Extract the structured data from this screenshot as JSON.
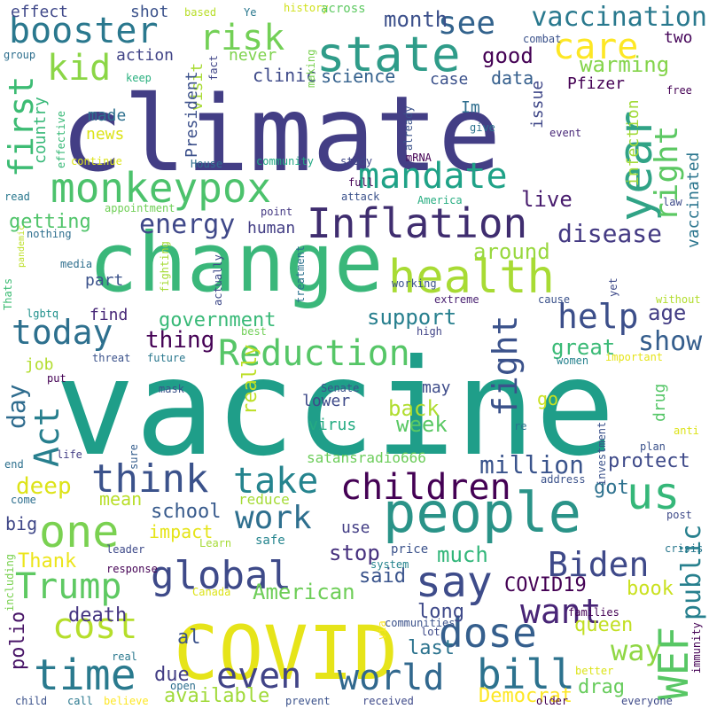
{
  "cloud": {
    "words": [
      {
        "text": "vaccine",
        "color": "#1f9e89"
      },
      {
        "text": "climate",
        "color": "#433e85"
      },
      {
        "text": "change",
        "color": "#3ab77a"
      },
      {
        "text": "people",
        "color": "#2a9388"
      },
      {
        "text": "COVID",
        "color": "#e6e419"
      },
      {
        "text": "health",
        "color": "#a8db34"
      },
      {
        "text": "state",
        "color": "#2f9c89"
      },
      {
        "text": "monkeypox",
        "color": "#4cc26c"
      },
      {
        "text": "Inflation",
        "color": "#3f2d6f"
      },
      {
        "text": "year",
        "color": "#30a386"
      },
      {
        "text": "dose",
        "color": "#355f8d"
      },
      {
        "text": "Reduction",
        "color": "#56c667"
      },
      {
        "text": "time",
        "color": "#2a7a8e"
      },
      {
        "text": "children",
        "color": "#440154"
      },
      {
        "text": "think",
        "color": "#3b528b"
      },
      {
        "text": "booster",
        "color": "#2a788e"
      },
      {
        "text": "mandate",
        "color": "#1fa287"
      },
      {
        "text": "global",
        "color": "#3e4a89"
      },
      {
        "text": "one",
        "color": "#7ad151"
      },
      {
        "text": "take",
        "color": "#25848e"
      },
      {
        "text": "Trump",
        "color": "#5ec962"
      },
      {
        "text": "Biden",
        "color": "#3e4989"
      },
      {
        "text": "world",
        "color": "#31688e"
      },
      {
        "text": "bill",
        "color": "#2c728e"
      },
      {
        "text": "want",
        "color": "#482576"
      },
      {
        "text": "cost",
        "color": "#b5de2b"
      },
      {
        "text": "say",
        "color": "#3e4c8a"
      },
      {
        "text": "even",
        "color": "#414487"
      },
      {
        "text": "us",
        "color": "#35b779"
      },
      {
        "text": "WEF",
        "color": "#58c765"
      },
      {
        "text": "fight",
        "color": "#3b528b"
      },
      {
        "text": "today",
        "color": "#2d708e"
      },
      {
        "text": "care",
        "color": "#fde725"
      },
      {
        "text": "risk",
        "color": "#73d056"
      },
      {
        "text": "kid",
        "color": "#8bd646"
      },
      {
        "text": "first",
        "color": "#3dbc74"
      },
      {
        "text": "Act",
        "color": "#277f8e"
      },
      {
        "text": "right",
        "color": "#5cc863"
      },
      {
        "text": "help",
        "color": "#3c4f8a"
      },
      {
        "text": "see",
        "color": "#33638d"
      },
      {
        "text": "vaccination",
        "color": "#29798e"
      },
      {
        "text": "work",
        "color": "#2e6f8e"
      },
      {
        "text": "energy",
        "color": "#3f4889"
      },
      {
        "text": "disease",
        "color": "#443a83"
      },
      {
        "text": "show",
        "color": "#355e8d"
      },
      {
        "text": "public",
        "color": "#27808e"
      },
      {
        "text": "million",
        "color": "#3a548c"
      },
      {
        "text": "way",
        "color": "#8fd744"
      },
      {
        "text": "thing",
        "color": "#440154"
      },
      {
        "text": "day",
        "color": "#2f6c8e"
      },
      {
        "text": "deep",
        "color": "#dde318"
      },
      {
        "text": "American",
        "color": "#6ece58"
      },
      {
        "text": "government",
        "color": "#38b977"
      },
      {
        "text": "support",
        "color": "#277f8e"
      },
      {
        "text": "good",
        "color": "#440154"
      },
      {
        "text": "month",
        "color": "#3c508b"
      },
      {
        "text": "warming",
        "color": "#84d44b"
      },
      {
        "text": "getting",
        "color": "#50c46a"
      },
      {
        "text": "live",
        "color": "#481c6e"
      },
      {
        "text": "around",
        "color": "#98d83e"
      },
      {
        "text": "great",
        "color": "#3aba76"
      },
      {
        "text": "age",
        "color": "#433d84"
      },
      {
        "text": "back",
        "color": "#b0dd2f"
      },
      {
        "text": "week",
        "color": "#5ac864"
      },
      {
        "text": "really",
        "color": "#bddf26"
      },
      {
        "text": "school",
        "color": "#375a8c"
      },
      {
        "text": "protect",
        "color": "#3e4a89"
      },
      {
        "text": "got",
        "color": "#2d718e"
      },
      {
        "text": "much",
        "color": "#32b67a"
      },
      {
        "text": "stop",
        "color": "#46307e"
      },
      {
        "text": "said",
        "color": "#3a548c"
      },
      {
        "text": "COVID19",
        "color": "#440154"
      },
      {
        "text": "book",
        "color": "#cae11f"
      },
      {
        "text": "long",
        "color": "#3e4989"
      },
      {
        "text": "queen",
        "color": "#c2df23"
      },
      {
        "text": "drag",
        "color": "#67cc5c"
      },
      {
        "text": "last",
        "color": "#2c738e"
      },
      {
        "text": "due",
        "color": "#433e85"
      },
      {
        "text": "available",
        "color": "#a0da39"
      },
      {
        "text": "Democrat",
        "color": "#fde725"
      },
      {
        "text": "death",
        "color": "#453581"
      },
      {
        "text": "al",
        "color": "#3b528b"
      },
      {
        "text": "polio",
        "color": "#481467"
      },
      {
        "text": "Thank",
        "color": "#ece51b"
      },
      {
        "text": "impact",
        "color": "#e5e419"
      },
      {
        "text": "mean",
        "color": "#b8de29"
      },
      {
        "text": "big",
        "color": "#3f4788"
      },
      {
        "text": "effect",
        "color": "#3f4889"
      },
      {
        "text": "shot",
        "color": "#3b528b"
      },
      {
        "text": "action",
        "color": "#414487"
      },
      {
        "text": "made",
        "color": "#2d708e"
      },
      {
        "text": "country",
        "color": "#37b878"
      },
      {
        "text": "news",
        "color": "#dce319"
      },
      {
        "text": "clinic",
        "color": "#3e4a89"
      },
      {
        "text": "science",
        "color": "#34618d"
      },
      {
        "text": "case",
        "color": "#3b518b"
      },
      {
        "text": "data",
        "color": "#355f8d"
      },
      {
        "text": "Pfizer",
        "color": "#440154"
      },
      {
        "text": "issue",
        "color": "#3f4788"
      },
      {
        "text": "vaccinated",
        "color": "#2b758e"
      },
      {
        "text": "infection",
        "color": "#a2da37"
      },
      {
        "text": "Im",
        "color": "#2e6e8e"
      },
      {
        "text": "two",
        "color": "#450559"
      },
      {
        "text": "never",
        "color": "#7fd34e"
      },
      {
        "text": "visit",
        "color": "#a8db34"
      },
      {
        "text": "President",
        "color": "#3c508b"
      },
      {
        "text": "human",
        "color": "#433e85"
      },
      {
        "text": "part",
        "color": "#3b528b"
      },
      {
        "text": "find",
        "color": "#482878"
      },
      {
        "text": "job",
        "color": "#b2dd2d"
      },
      {
        "text": "may",
        "color": "#3e4c8a"
      },
      {
        "text": "lower",
        "color": "#3e4a89"
      },
      {
        "text": "virus",
        "color": "#25ab82"
      },
      {
        "text": "go",
        "color": "#cae11f"
      },
      {
        "text": "drug",
        "color": "#55c667"
      },
      {
        "text": "satansradio666",
        "color": "#6ccd5a"
      },
      {
        "text": "reduce",
        "color": "#a5db36"
      },
      {
        "text": "use",
        "color": "#433e85"
      },
      {
        "text": "safe",
        "color": "#25858e"
      },
      {
        "text": "price",
        "color": "#3b528b"
      },
      {
        "text": "history",
        "color": "#d0e11c"
      },
      {
        "text": "across",
        "color": "#5ec962"
      },
      {
        "text": "combat",
        "color": "#3b528b"
      },
      {
        "text": "based",
        "color": "#b8de29"
      },
      {
        "text": "Ye",
        "color": "#2a788e"
      },
      {
        "text": "group",
        "color": "#2e6f8e"
      },
      {
        "text": "keep",
        "color": "#2ab07f"
      },
      {
        "text": "fact",
        "color": "#404588"
      },
      {
        "text": "making",
        "color": "#7ad151"
      },
      {
        "text": "free",
        "color": "#440154"
      },
      {
        "text": "effective",
        "color": "#38b977"
      },
      {
        "text": "continue",
        "color": "#dce319"
      },
      {
        "text": "House",
        "color": "#2e6f8e"
      },
      {
        "text": "community",
        "color": "#22a884"
      },
      {
        "text": "study",
        "color": "#3f4788"
      },
      {
        "text": "mRNA",
        "color": "#440154"
      },
      {
        "text": "already",
        "color": "#3b528b"
      },
      {
        "text": "give",
        "color": "#2c738e"
      },
      {
        "text": "event",
        "color": "#482878"
      },
      {
        "text": "read",
        "color": "#2a788e"
      },
      {
        "text": "full",
        "color": "#440154"
      },
      {
        "text": "attack",
        "color": "#3b528b"
      },
      {
        "text": "America",
        "color": "#27ad81"
      },
      {
        "text": "law",
        "color": "#3e4a89"
      },
      {
        "text": "appointment",
        "color": "#70cf57"
      },
      {
        "text": "point",
        "color": "#443983"
      },
      {
        "text": "nothing",
        "color": "#2e6f8e"
      },
      {
        "text": "media",
        "color": "#2e6f8e"
      },
      {
        "text": "pandemic",
        "color": "#bddf26"
      },
      {
        "text": "Thats",
        "color": "#3dbc74"
      },
      {
        "text": "fighting",
        "color": "#a5db36"
      },
      {
        "text": "actually",
        "color": "#3e4989"
      },
      {
        "text": "treatment",
        "color": "#2c728e"
      },
      {
        "text": "working",
        "color": "#3b528b"
      },
      {
        "text": "extreme",
        "color": "#481f70"
      },
      {
        "text": "cause",
        "color": "#3b528b"
      },
      {
        "text": "yet",
        "color": "#3e4a89"
      },
      {
        "text": "without",
        "color": "#b2dd2d"
      },
      {
        "text": "lgbtq",
        "color": "#21918c"
      },
      {
        "text": "best",
        "color": "#70cf57"
      },
      {
        "text": "high",
        "color": "#414487"
      },
      {
        "text": "threat",
        "color": "#3b528b"
      },
      {
        "text": "future",
        "color": "#2a788e"
      },
      {
        "text": "women",
        "color": "#26828e"
      },
      {
        "text": "important",
        "color": "#e5e419"
      },
      {
        "text": "put",
        "color": "#440154"
      },
      {
        "text": "mask",
        "color": "#3b528b"
      },
      {
        "text": "Senate",
        "color": "#3b528b"
      },
      {
        "text": "re",
        "color": "#2c728e"
      },
      {
        "text": "investment",
        "color": "#3b528b"
      },
      {
        "text": "plan",
        "color": "#3b528b"
      },
      {
        "text": "anti",
        "color": "#dce319"
      },
      {
        "text": "end",
        "color": "#2d708e"
      },
      {
        "text": "life",
        "color": "#433e85"
      },
      {
        "text": "sure",
        "color": "#355e8d"
      },
      {
        "text": "address",
        "color": "#3b528b"
      },
      {
        "text": "come",
        "color": "#2e6f8e"
      },
      {
        "text": "response",
        "color": "#440154"
      },
      {
        "text": "leader",
        "color": "#3e4a89"
      },
      {
        "text": "Learn",
        "color": "#a5db36"
      },
      {
        "text": "post",
        "color": "#3e4a89"
      },
      {
        "text": "crisis",
        "color": "#2a788e"
      },
      {
        "text": "including",
        "color": "#7ad151"
      },
      {
        "text": "Canada",
        "color": "#dce319"
      },
      {
        "text": "system",
        "color": "#25848e"
      },
      {
        "text": "via",
        "color": "#fde725"
      },
      {
        "text": "lot",
        "color": "#3e4a89"
      },
      {
        "text": "communities",
        "color": "#3b528b"
      },
      {
        "text": "families",
        "color": "#440154"
      },
      {
        "text": "immunity",
        "color": "#440154"
      },
      {
        "text": "real",
        "color": "#2a788e"
      },
      {
        "text": "open",
        "color": "#2e6f8e"
      },
      {
        "text": "better",
        "color": "#dce319"
      },
      {
        "text": "child",
        "color": "#3b528b"
      },
      {
        "text": "call",
        "color": "#2a788e"
      },
      {
        "text": "believe",
        "color": "#fde725"
      },
      {
        "text": "prevent",
        "color": "#3b528b"
      },
      {
        "text": "received",
        "color": "#3e4a89"
      },
      {
        "text": "older",
        "color": "#440154"
      },
      {
        "text": "everyone",
        "color": "#3e4a89"
      }
    ]
  }
}
